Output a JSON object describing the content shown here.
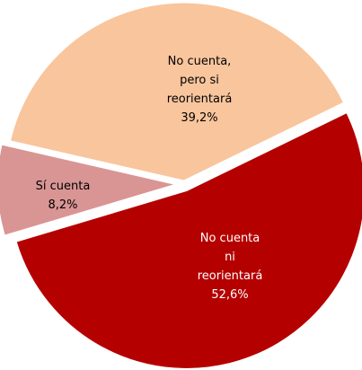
{
  "chart_data": {
    "type": "pie",
    "categories": [
      "No cuenta ni reorientará",
      "Sí cuenta",
      "No cuenta, pero si reorientará"
    ],
    "values": [
      52.6,
      8.2,
      39.2
    ],
    "value_labels": [
      "52,6%",
      "8,2%",
      "39,2%"
    ],
    "colors": [
      "#b50000",
      "#d99594",
      "#f9c59d"
    ]
  }
}
